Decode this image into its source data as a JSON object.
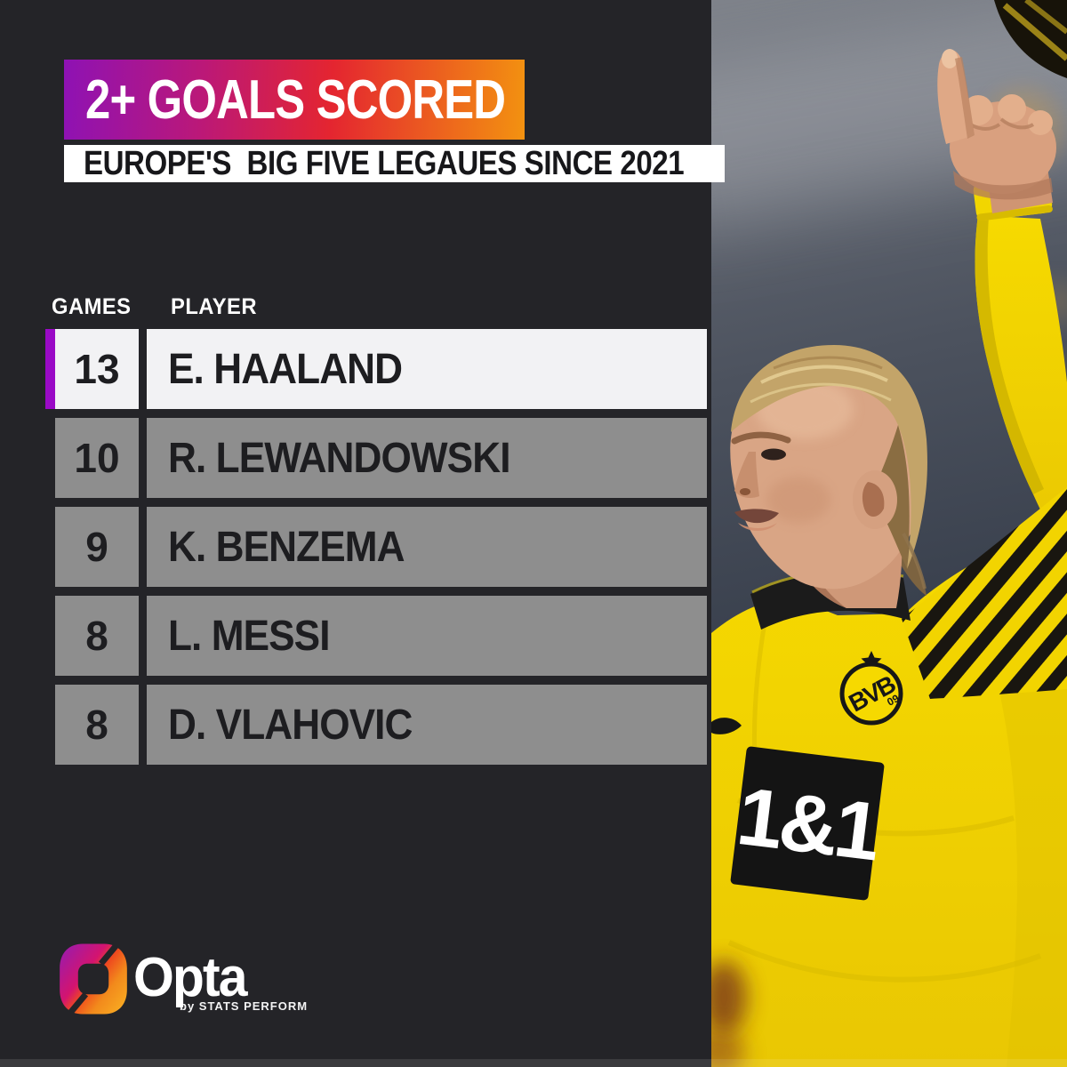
{
  "header": {
    "title": "2+ GOALS SCORED",
    "subtitle": "EUROPE'S  BIG FIVE LEGAUES SINCE 2021"
  },
  "table": {
    "column_games": "GAMES",
    "column_player": "PLAYER",
    "rows": [
      {
        "games": "13",
        "player": "E. HAALAND",
        "highlight": true
      },
      {
        "games": "10",
        "player": "R. LEWANDOWSKI",
        "highlight": false
      },
      {
        "games": "9",
        "player": "K. BENZEMA",
        "highlight": false
      },
      {
        "games": "8",
        "player": "L. MESSI",
        "highlight": false
      },
      {
        "games": "8",
        "player": "D. VLAHOVIC",
        "highlight": false
      }
    ]
  },
  "footer": {
    "brand": "Opta",
    "tagline": "by STATS PERFORM"
  },
  "photo": {
    "sponsor": "1&1",
    "crest_letters": "BVB",
    "crest_number": "09"
  },
  "colors": {
    "background": "#242428",
    "banner_gradient": [
      "#8e12b4",
      "#e42530",
      "#f39210"
    ],
    "highlight_stripe": "#9a0ac6",
    "highlight_row_bg": "#f2f2f4",
    "row_bg": "#8e8e8e",
    "row_text": "#1d1d20",
    "jersey_yellow": "#f4d800"
  },
  "chart_data": {
    "type": "table",
    "title": "2+ GOALS SCORED",
    "subtitle": "EUROPE'S  BIG FIVE LEGAUES SINCE 2021",
    "columns": [
      "GAMES",
      "PLAYER"
    ],
    "rows": [
      [
        13,
        "E. HAALAND"
      ],
      [
        10,
        "R. LEWANDOWSKI"
      ],
      [
        9,
        "K. BENZEMA"
      ],
      [
        8,
        "L. MESSI"
      ],
      [
        8,
        "D. VLAHOVIC"
      ]
    ],
    "highlighted_row": "E. HAALAND",
    "layout": "ranked list, highlighted leader row with purple accent bar"
  }
}
